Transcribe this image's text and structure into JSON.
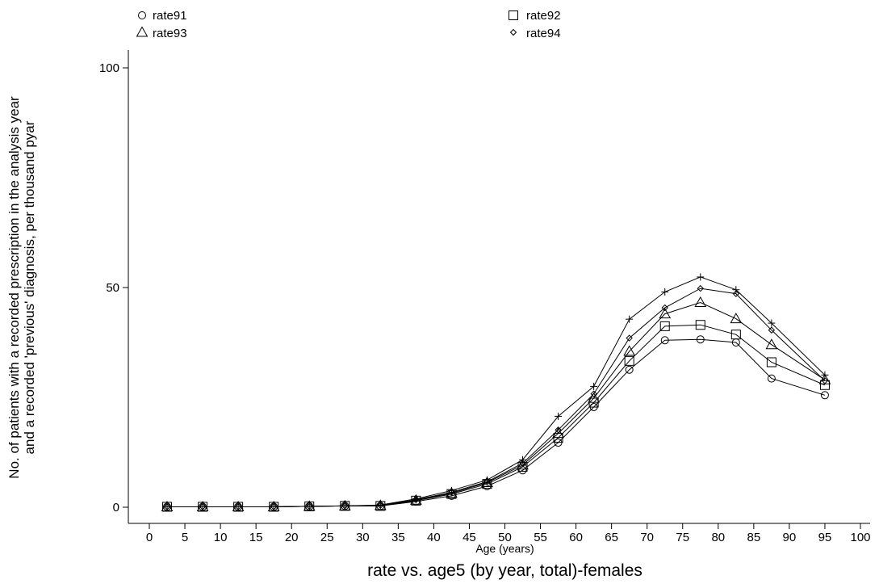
{
  "chart_data": {
    "type": "line",
    "title": "rate vs. age5 (by year, total)-females",
    "xlabel": "Age (years)",
    "ylabel_lines": [
      "No. of patients with a recorded prescription in the analysis year",
      "and a recorded 'previous' diagnosis, per thousand pyar"
    ],
    "xlim": [
      -5,
      102
    ],
    "ylim": [
      0,
      100
    ],
    "xticks": [
      0,
      5,
      10,
      15,
      20,
      25,
      30,
      35,
      40,
      45,
      50,
      55,
      60,
      65,
      70,
      75,
      80,
      85,
      90,
      95,
      100
    ],
    "yticks": [
      0,
      50,
      100
    ],
    "x": [
      2.5,
      7.5,
      12.5,
      17.5,
      22.5,
      27.5,
      32.5,
      37.5,
      42.5,
      47.5,
      52.5,
      57.5,
      62.5,
      67.5,
      72.5,
      77.5,
      82.5,
      87.5,
      95
    ],
    "series": [
      {
        "name": "rate91",
        "marker": "circle",
        "values": [
          0.1,
          0.1,
          0.1,
          0.1,
          0.2,
          0.3,
          0.3,
          1.3,
          2.6,
          4.8,
          8.4,
          14.7,
          22.8,
          31.3,
          38.0,
          38.2,
          37.5,
          29.3,
          25.5
        ]
      },
      {
        "name": "rate92",
        "marker": "square",
        "values": [
          0.1,
          0.1,
          0.1,
          0.1,
          0.2,
          0.3,
          0.3,
          1.5,
          3.0,
          5.3,
          9.2,
          15.8,
          23.8,
          33.3,
          41.2,
          41.5,
          39.3,
          33.0,
          27.8
        ]
      },
      {
        "name": "rate93",
        "marker": "triangle",
        "values": [
          0.1,
          0.1,
          0.1,
          0.1,
          0.2,
          0.3,
          0.4,
          1.6,
          3.2,
          5.6,
          9.6,
          16.8,
          24.8,
          35.5,
          44.0,
          46.6,
          42.9,
          37.0,
          29.0
        ]
      },
      {
        "name": "rate94",
        "marker": "diamond",
        "values": [
          0.1,
          0.1,
          0.1,
          0.1,
          0.2,
          0.3,
          0.4,
          1.7,
          3.4,
          5.8,
          10.0,
          17.6,
          25.8,
          38.5,
          45.4,
          49.8,
          48.6,
          40.3,
          28.8
        ]
      },
      {
        "name": "",
        "marker": "plus",
        "values": [
          0.1,
          0.1,
          0.1,
          0.1,
          0.2,
          0.3,
          0.5,
          1.9,
          3.8,
          6.2,
          10.8,
          20.7,
          27.5,
          42.8,
          49.0,
          52.4,
          49.5,
          41.9,
          30.1
        ]
      }
    ]
  }
}
